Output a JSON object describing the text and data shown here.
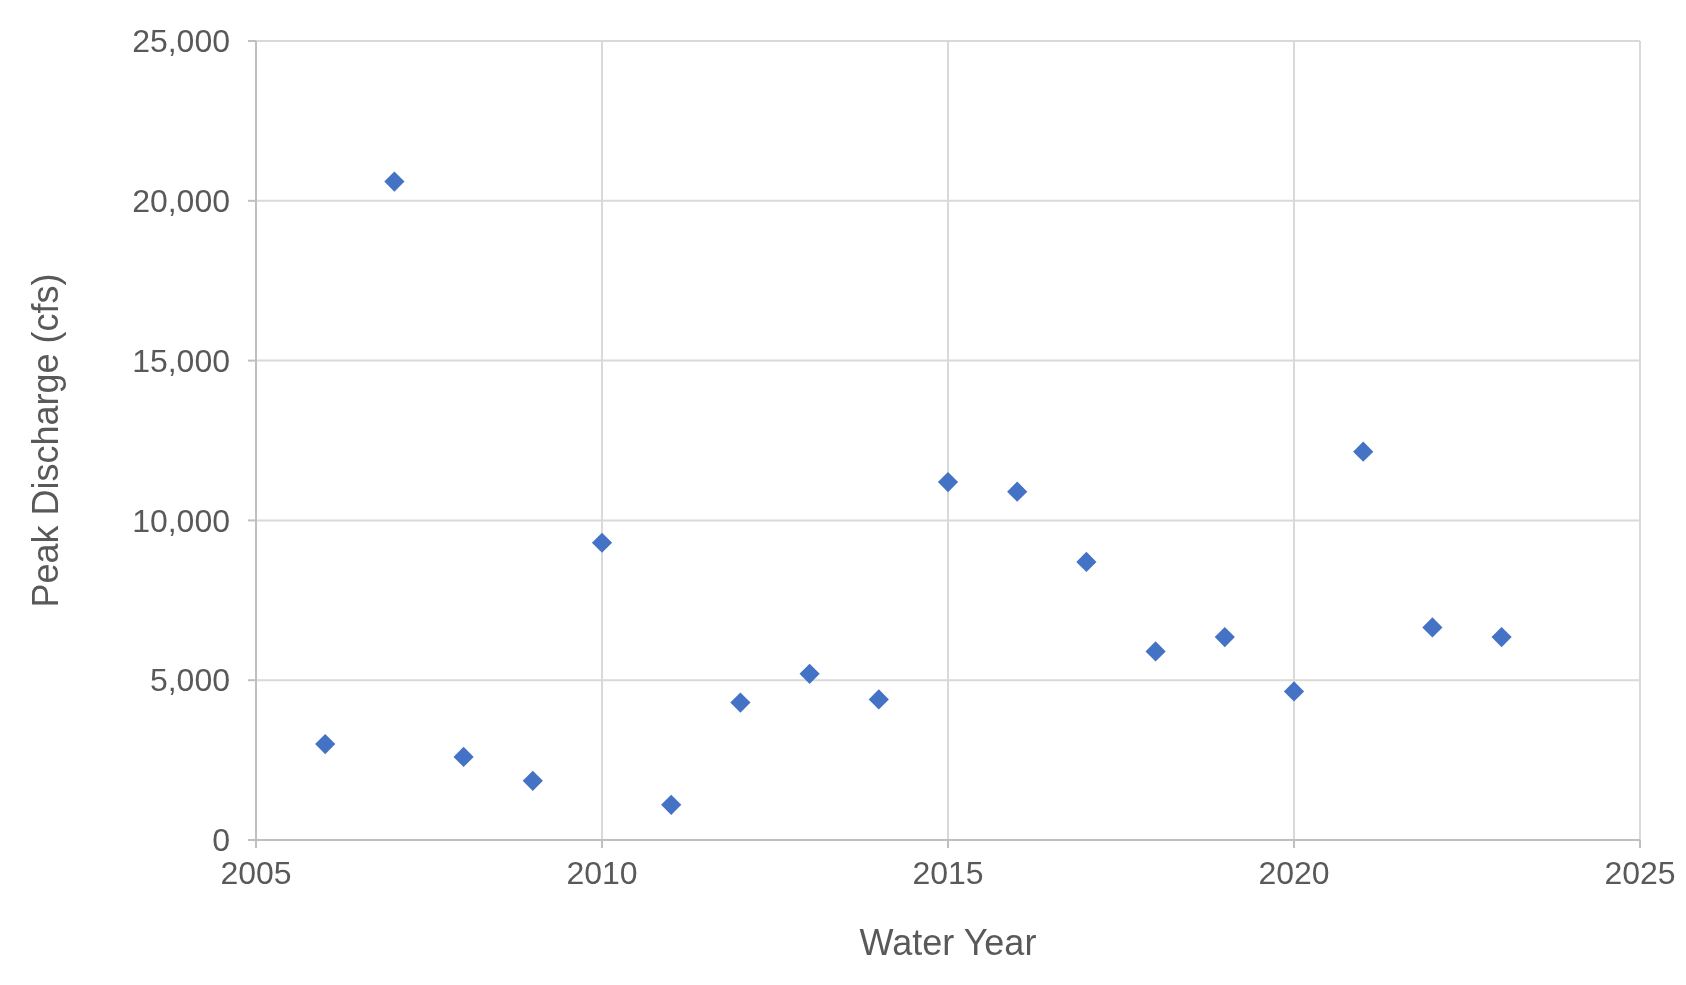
{
  "chart_data": {
    "type": "scatter",
    "xlabel": "Water Year",
    "ylabel": "Peak Discharge (cfs)",
    "x": [
      2006,
      2007,
      2008,
      2009,
      2010,
      2011,
      2012,
      2013,
      2014,
      2015,
      2016,
      2017,
      2018,
      2019,
      2020,
      2021,
      2022,
      2023
    ],
    "series": [
      {
        "color": "#4472c4",
        "values": [
          3000,
          20600,
          2600,
          1850,
          9300,
          1100,
          4300,
          5200,
          4400,
          11200,
          10900,
          8700,
          5900,
          6350,
          4650,
          12150,
          6650,
          6350
        ]
      }
    ],
    "xlim": [
      2005,
      2025
    ],
    "xticks": [
      2005,
      2010,
      2015,
      2020,
      2025
    ],
    "ylim": [
      0,
      25000
    ],
    "yticks": [
      0,
      {
        "value": 5000,
        "label": "5,000"
      },
      {
        "value": 10000,
        "label": "10,000"
      },
      {
        "value": 15000,
        "label": "15,000"
      },
      {
        "value": 20000,
        "label": "20,000"
      },
      {
        "value": 25000,
        "label": "25,000"
      }
    ],
    "grid": true,
    "marker": "diamond"
  }
}
